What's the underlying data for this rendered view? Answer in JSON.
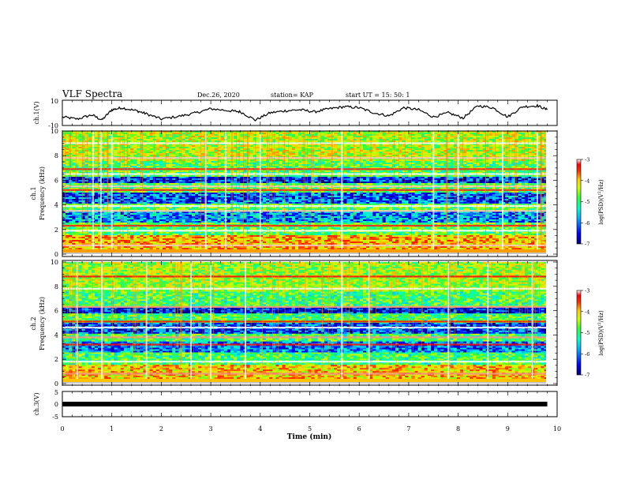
{
  "header": {
    "title": "VLF Spectra",
    "date": "Dec.26, 2020",
    "station": "station= KAP",
    "start": "start  UT =   15: 50: 1"
  },
  "colors": {
    "colormap": [
      "#00007a",
      "#0000ff",
      "#00aaff",
      "#00ffcc",
      "#33ff33",
      "#ccff00",
      "#ffcc00",
      "#ff3300",
      "#ff0000",
      "#ffffff"
    ],
    "trace": "#000000",
    "axes": "#000000"
  },
  "chart_data": [
    {
      "type": "line",
      "panel": "ch.1 waveform",
      "ylabel": "ch.1(V)",
      "ylim": [
        -10,
        10
      ],
      "ytick_labels": [
        "10",
        "-10"
      ],
      "xlim": [
        0,
        10
      ],
      "x": [
        0,
        0.3,
        0.6,
        0.8,
        1.0,
        1.2,
        1.5,
        1.7,
        2.0,
        2.4,
        2.7,
        3.0,
        3.4,
        3.6,
        3.9,
        4.2,
        4.5,
        4.8,
        5.1,
        5.4,
        5.7,
        6.0,
        6.3,
        6.6,
        6.9,
        7.2,
        7.5,
        7.8,
        8.1,
        8.4,
        8.7,
        9.0,
        9.3,
        9.6,
        9.8
      ],
      "values": [
        -4,
        -6,
        -2,
        -7,
        3,
        5,
        2,
        -1,
        -6,
        -3,
        0,
        4,
        2,
        1,
        -7,
        0,
        2,
        3,
        1,
        4,
        6,
        5,
        0,
        -3,
        5,
        3,
        -4,
        0,
        -5,
        7,
        5,
        -4,
        6,
        7,
        3
      ]
    },
    {
      "type": "heatmap",
      "panel": "ch.1 spectrogram",
      "ylabel": "ch.1\nFrequency (kHz)",
      "ylim": [
        0,
        10
      ],
      "xlim": [
        0,
        10
      ],
      "ytick_labels": [
        "0",
        "2",
        "4",
        "6",
        "8",
        "10"
      ],
      "colorbar": {
        "label": "log(PSD)(V²/Hz)",
        "range": [
          -7,
          -3
        ],
        "tick_labels": [
          "-3",
          "-4",
          "-5",
          "-6",
          "-7"
        ]
      },
      "bands_khz": [
        0.3,
        0.7,
        1.9,
        2.3,
        3.5,
        3.9,
        5.2,
        5.5,
        6.5,
        6.9,
        7.8,
        9.0
      ],
      "spikes_min": [
        0.62,
        0.78,
        1.0,
        2.9,
        3.3,
        4.0,
        5.65,
        7.5,
        8.0,
        8.9,
        9.6
      ],
      "low_level": -6.5,
      "mid_level": -5.2,
      "high_level": -3.4
    },
    {
      "type": "heatmap",
      "panel": "ch.2 spectrogram",
      "ylabel": "ch.2\nFrequency (kHz)",
      "ylim": [
        0,
        10
      ],
      "xlim": [
        0,
        10
      ],
      "ytick_labels": [
        "0",
        "2",
        "4",
        "6",
        "8",
        "10"
      ],
      "colorbar": {
        "label": "log(PSD)(V²/Hz)",
        "range": [
          -7,
          -3
        ],
        "tick_labels": [
          "-3",
          "-4",
          "-5",
          "-6",
          "-7"
        ]
      },
      "bands_khz": [
        0.3,
        0.8,
        1.8,
        3.2,
        3.8,
        4.6,
        5.1,
        6.3,
        7.8,
        8.8
      ],
      "spikes_min": [
        0.3,
        0.8,
        1.7,
        2.6,
        3.0,
        3.7,
        5.65,
        6.2,
        7.8,
        8.6,
        9.5
      ],
      "low_level": -6.6,
      "mid_level": -5.3,
      "high_level": -3.5
    },
    {
      "type": "line",
      "panel": "ch.3 waveform",
      "ylabel": "ch.3(V)",
      "ylim": [
        -5,
        5
      ],
      "ytick_labels": [
        "5",
        "0",
        "-5"
      ],
      "xlim": [
        0,
        10
      ],
      "x": [
        0,
        9.8
      ],
      "values": [
        0,
        0
      ],
      "xlabel": "Time  (min)",
      "xtick_labels": [
        "0",
        "1",
        "2",
        "3",
        "4",
        "5",
        "6",
        "7",
        "8",
        "9",
        "10"
      ]
    }
  ]
}
